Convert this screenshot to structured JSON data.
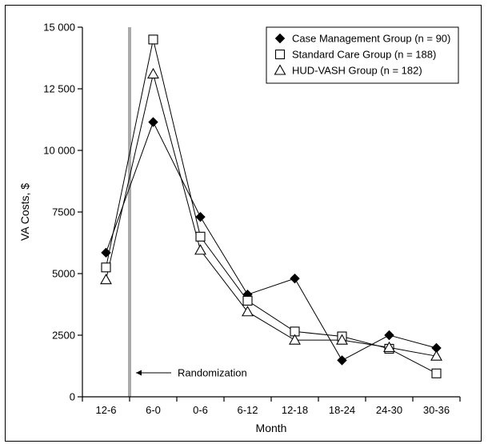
{
  "chart_data": {
    "type": "line",
    "title": "",
    "xlabel": "Month",
    "ylabel": "VA Costs, $",
    "categories": [
      "12-6",
      "6-0",
      "0-6",
      "6-12",
      "12-18",
      "18-24",
      "24-30",
      "30-36"
    ],
    "ylim": [
      0,
      15000
    ],
    "yticks": [
      0,
      2500,
      5000,
      7500,
      10000,
      12500,
      15000
    ],
    "ytick_labels": [
      "0",
      "2500",
      "5000",
      "7500",
      "10 000",
      "12 500",
      "15 000"
    ],
    "grid": false,
    "legend_position": "top-right",
    "series": [
      {
        "name": "Case Management Group (n = 90)",
        "marker": "filled-diamond",
        "values": [
          5850,
          11150,
          7300,
          4150,
          4800,
          1480,
          2500,
          1980
        ]
      },
      {
        "name": "Standard Care Group (n = 188)",
        "marker": "open-square",
        "values": [
          5250,
          14500,
          6500,
          3900,
          2650,
          2450,
          1950,
          950
        ]
      },
      {
        "name": "HUD-VASH Group (n = 182)",
        "marker": "open-triangle",
        "values": [
          4750,
          13100,
          5950,
          3450,
          2300,
          2300,
          2000,
          1650
        ]
      }
    ],
    "annotation": {
      "label": "Randomization",
      "category_position": 1.5,
      "line_color": "#aaaaaa"
    }
  }
}
